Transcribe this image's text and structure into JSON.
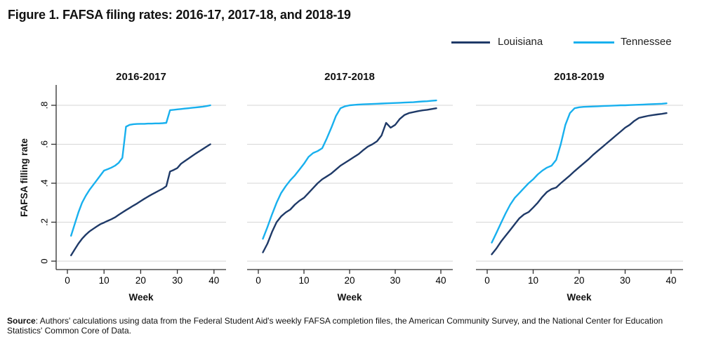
{
  "title": "Figure 1. FAFSA filing rates: 2016-17, 2017-18, and 2018-19",
  "legend": {
    "items": [
      {
        "label": "Louisiana",
        "color": "#1f3a68"
      },
      {
        "label": "Tennessee",
        "color": "#18b0ee"
      }
    ]
  },
  "source": {
    "label": "Source",
    "text": ": Authors' calculations using data from the Federal Student Aid's weekly FAFSA completion files, the American Community Survey, and the National Center for Education Statistics' Common Core of Data."
  },
  "colors": {
    "louisiana": "#1f3a68",
    "tennessee": "#18b0ee",
    "gridline": "#d6d6d6",
    "axis": "#2e2e2e",
    "text": "#000000"
  },
  "chart_data": {
    "type": "line",
    "title": "FAFSA filing rates by week",
    "xlabel": "Week",
    "ylabel": "FAFSA filling rate",
    "xlim": [
      0,
      40
    ],
    "ylim": [
      0,
      0.88
    ],
    "x_ticks": [
      0,
      10,
      20,
      30,
      40
    ],
    "y_ticks": [
      0,
      0.2,
      0.4,
      0.6,
      0.8
    ],
    "y_tick_labels": [
      "0",
      ".2",
      ".4",
      ".6",
      ".8"
    ],
    "grid": true,
    "legend_position": "top-right",
    "weeks": [
      1,
      2,
      3,
      4,
      5,
      6,
      7,
      8,
      9,
      10,
      11,
      12,
      13,
      14,
      15,
      16,
      17,
      18,
      19,
      20,
      21,
      22,
      23,
      24,
      25,
      26,
      27,
      28,
      29,
      30,
      31,
      32,
      33,
      34,
      35,
      36,
      37,
      38,
      39
    ],
    "panels": [
      {
        "title": "2016-2017",
        "series": [
          {
            "name": "Louisiana",
            "values": [
              0.03,
              0.06,
              0.09,
              0.115,
              0.135,
              0.152,
              0.165,
              0.178,
              0.19,
              0.198,
              0.207,
              0.215,
              0.225,
              0.238,
              0.25,
              0.262,
              0.273,
              0.285,
              0.296,
              0.308,
              0.32,
              0.331,
              0.342,
              0.352,
              0.362,
              0.372,
              0.385,
              0.46,
              0.468,
              0.478,
              0.5,
              0.513,
              0.526,
              0.539,
              0.552,
              0.564,
              0.576,
              0.588,
              0.6
            ]
          },
          {
            "name": "Tennessee",
            "values": [
              0.13,
              0.19,
              0.25,
              0.3,
              0.335,
              0.365,
              0.39,
              0.415,
              0.44,
              0.465,
              0.472,
              0.48,
              0.49,
              0.505,
              0.53,
              0.69,
              0.7,
              0.703,
              0.704,
              0.705,
              0.705,
              0.706,
              0.706,
              0.707,
              0.707,
              0.708,
              0.71,
              0.775,
              0.777,
              0.779,
              0.781,
              0.783,
              0.785,
              0.787,
              0.789,
              0.791,
              0.793,
              0.796,
              0.8
            ]
          }
        ]
      },
      {
        "title": "2017-2018",
        "series": [
          {
            "name": "Louisiana",
            "values": [
              0.045,
              0.09,
              0.15,
              0.2,
              0.23,
              0.25,
              0.265,
              0.29,
              0.31,
              0.325,
              0.35,
              0.375,
              0.4,
              0.42,
              0.435,
              0.45,
              0.47,
              0.49,
              0.505,
              0.52,
              0.535,
              0.55,
              0.57,
              0.588,
              0.6,
              0.615,
              0.645,
              0.71,
              0.685,
              0.7,
              0.73,
              0.75,
              0.76,
              0.765,
              0.77,
              0.774,
              0.777,
              0.781,
              0.785
            ]
          },
          {
            "name": "Tennessee",
            "values": [
              0.115,
              0.175,
              0.24,
              0.3,
              0.35,
              0.385,
              0.415,
              0.44,
              0.47,
              0.5,
              0.535,
              0.555,
              0.565,
              0.58,
              0.63,
              0.685,
              0.745,
              0.785,
              0.795,
              0.8,
              0.802,
              0.804,
              0.805,
              0.806,
              0.807,
              0.808,
              0.809,
              0.81,
              0.811,
              0.812,
              0.813,
              0.814,
              0.815,
              0.816,
              0.818,
              0.82,
              0.821,
              0.823,
              0.825
            ]
          }
        ]
      },
      {
        "title": "2018-2019",
        "series": [
          {
            "name": "Louisiana",
            "values": [
              0.035,
              0.065,
              0.1,
              0.13,
              0.16,
              0.19,
              0.22,
              0.24,
              0.252,
              0.275,
              0.3,
              0.33,
              0.355,
              0.37,
              0.378,
              0.4,
              0.42,
              0.44,
              0.462,
              0.482,
              0.502,
              0.522,
              0.545,
              0.565,
              0.585,
              0.605,
              0.625,
              0.645,
              0.665,
              0.685,
              0.7,
              0.72,
              0.735,
              0.741,
              0.746,
              0.75,
              0.753,
              0.756,
              0.76
            ]
          },
          {
            "name": "Tennessee",
            "values": [
              0.095,
              0.145,
              0.195,
              0.245,
              0.29,
              0.325,
              0.35,
              0.375,
              0.4,
              0.42,
              0.445,
              0.465,
              0.48,
              0.49,
              0.52,
              0.6,
              0.7,
              0.76,
              0.785,
              0.79,
              0.792,
              0.793,
              0.794,
              0.795,
              0.796,
              0.797,
              0.798,
              0.799,
              0.8,
              0.8,
              0.801,
              0.802,
              0.803,
              0.804,
              0.805,
              0.806,
              0.807,
              0.808,
              0.81
            ]
          }
        ]
      }
    ]
  }
}
